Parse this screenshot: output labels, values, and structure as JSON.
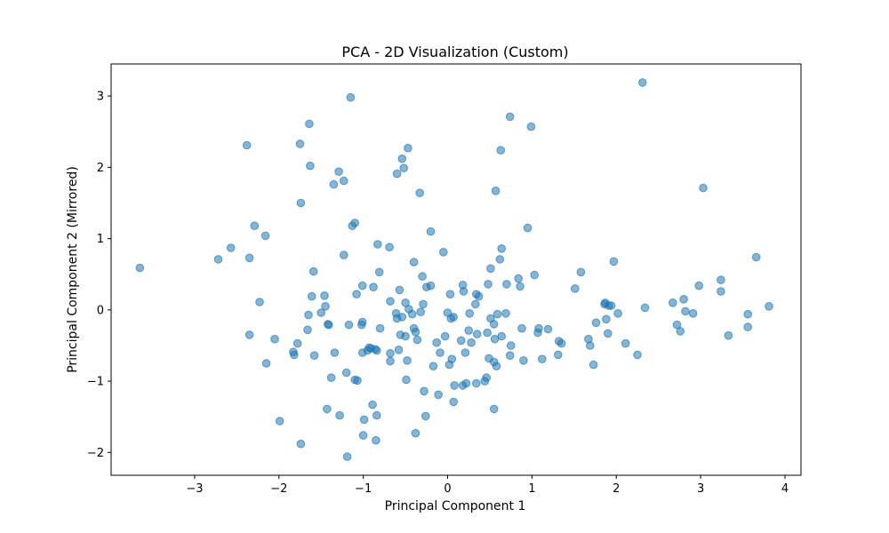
{
  "chart_data": {
    "type": "scatter",
    "title": "PCA - 2D Visualization (Custom)",
    "xlabel": "Principal Component 1",
    "ylabel": "Principal Component 2 (Mirrored)",
    "xlim": [
      -3.99,
      4.19
    ],
    "ylim": [
      -2.32,
      3.45
    ],
    "xticks": [
      -3,
      -2,
      -1,
      0,
      1,
      2,
      3,
      4
    ],
    "xtick_labels": [
      "−3",
      "−2",
      "−1",
      "0",
      "1",
      "2",
      "3",
      "4"
    ],
    "yticks": [
      -2,
      -1,
      0,
      1,
      2,
      3
    ],
    "ytick_labels": [
      "−2",
      "−1",
      "0",
      "1",
      "2",
      "3"
    ],
    "grid": false,
    "marker_color": "#1f77b4",
    "marker_alpha": 0.55,
    "points": [
      [
        -3.65,
        0.59
      ],
      [
        -2.72,
        0.71
      ],
      [
        -2.57,
        0.87
      ],
      [
        -2.38,
        2.31
      ],
      [
        -2.35,
        0.73
      ],
      [
        -2.35,
        -0.35
      ],
      [
        -2.29,
        1.18
      ],
      [
        -2.23,
        0.11
      ],
      [
        -2.16,
        1.04
      ],
      [
        -2.15,
        -0.75
      ],
      [
        -2.05,
        -0.41
      ],
      [
        -1.99,
        -1.56
      ],
      [
        -1.83,
        -0.59
      ],
      [
        -1.82,
        -0.63
      ],
      [
        -1.78,
        -0.47
      ],
      [
        -1.75,
        2.33
      ],
      [
        -1.74,
        1.5
      ],
      [
        -1.74,
        -1.88
      ],
      [
        -1.66,
        -0.28
      ],
      [
        -1.65,
        -0.07
      ],
      [
        -1.64,
        2.61
      ],
      [
        -1.63,
        2.02
      ],
      [
        -1.61,
        0.19
      ],
      [
        -1.59,
        0.54
      ],
      [
        -1.58,
        -0.64
      ],
      [
        -1.5,
        -0.04
      ],
      [
        -1.46,
        0.2
      ],
      [
        -1.45,
        0.05
      ],
      [
        -1.43,
        -1.39
      ],
      [
        -1.42,
        -0.2
      ],
      [
        -1.41,
        -0.21
      ],
      [
        -1.38,
        -0.95
      ],
      [
        -1.35,
        1.76
      ],
      [
        -1.34,
        -0.6
      ],
      [
        -1.29,
        1.94
      ],
      [
        -1.28,
        -1.48
      ],
      [
        -1.23,
        1.81
      ],
      [
        -1.23,
        0.77
      ],
      [
        -1.2,
        -0.88
      ],
      [
        -1.19,
        -2.06
      ],
      [
        -1.17,
        -0.21
      ],
      [
        -1.15,
        2.98
      ],
      [
        -1.13,
        1.18
      ],
      [
        -1.1,
        1.22
      ],
      [
        -1.1,
        -0.98
      ],
      [
        -1.08,
        0.22
      ],
      [
        -1.07,
        -0.99
      ],
      [
        -1.02,
        -0.21
      ],
      [
        -1.01,
        -0.17
      ],
      [
        -1.01,
        0.34
      ],
      [
        -1.01,
        -0.6
      ],
      [
        -1.0,
        -1.76
      ],
      [
        -0.99,
        -1.54
      ],
      [
        -0.95,
        -0.57
      ],
      [
        -0.93,
        -0.53
      ],
      [
        -0.91,
        -0.54
      ],
      [
        -0.89,
        -1.33
      ],
      [
        -0.88,
        0.32
      ],
      [
        -0.86,
        -0.55
      ],
      [
        -0.85,
        -1.83
      ],
      [
        -0.84,
        -1.48
      ],
      [
        -0.84,
        -0.57
      ],
      [
        -0.83,
        0.92
      ],
      [
        -0.81,
        0.53
      ],
      [
        -0.8,
        -0.26
      ],
      [
        -0.69,
        0.88
      ],
      [
        -0.68,
        -0.61
      ],
      [
        -0.68,
        -0.72
      ],
      [
        -0.68,
        0.12
      ],
      [
        -0.61,
        -0.05
      ],
      [
        -0.6,
        -0.12
      ],
      [
        -0.6,
        1.91
      ],
      [
        -0.58,
        -0.56
      ],
      [
        -0.57,
        0.28
      ],
      [
        -0.56,
        -0.35
      ],
      [
        -0.54,
        -0.1
      ],
      [
        -0.54,
        2.12
      ],
      [
        -0.52,
        1.99
      ],
      [
        -0.5,
        -0.37
      ],
      [
        -0.5,
        0.1
      ],
      [
        -0.49,
        -0.98
      ],
      [
        -0.48,
        -0.71
      ],
      [
        -0.47,
        2.27
      ],
      [
        -0.46,
        0.01
      ],
      [
        -0.42,
        -0.06
      ],
      [
        -0.4,
        0.67
      ],
      [
        -0.4,
        -0.26
      ],
      [
        -0.38,
        -0.31
      ],
      [
        -0.38,
        -1.73
      ],
      [
        -0.36,
        -0.42
      ],
      [
        -0.33,
        1.64
      ],
      [
        -0.32,
        -0.03
      ],
      [
        -0.3,
        0.47
      ],
      [
        -0.29,
        0.08
      ],
      [
        -0.28,
        -1.14
      ],
      [
        -0.26,
        -1.49
      ],
      [
        -0.25,
        0.32
      ],
      [
        -0.2,
        1.1
      ],
      [
        -0.2,
        0.34
      ],
      [
        -0.17,
        -0.79
      ],
      [
        -0.13,
        -0.46
      ],
      [
        -0.11,
        -1.19
      ],
      [
        -0.09,
        -0.6
      ],
      [
        -0.05,
        0.81
      ],
      [
        -0.03,
        -0.37
      ],
      [
        0.0,
        -0.04
      ],
      [
        0.02,
        -0.77
      ],
      [
        0.03,
        0.22
      ],
      [
        0.04,
        -0.12
      ],
      [
        0.05,
        -0.69
      ],
      [
        0.07,
        -1.29
      ],
      [
        0.07,
        -0.1
      ],
      [
        0.08,
        -1.06
      ],
      [
        0.16,
        -0.43
      ],
      [
        0.18,
        -1.06
      ],
      [
        0.18,
        0.35
      ],
      [
        0.19,
        0.26
      ],
      [
        0.21,
        -0.6
      ],
      [
        0.22,
        -1.03
      ],
      [
        0.25,
        -0.29
      ],
      [
        0.26,
        -0.05
      ],
      [
        0.28,
        -0.46
      ],
      [
        0.33,
        0.08
      ],
      [
        0.34,
        -1.03
      ],
      [
        0.34,
        0.22
      ],
      [
        0.35,
        -0.34
      ],
      [
        0.37,
        0.19
      ],
      [
        0.44,
        -1.0
      ],
      [
        0.46,
        -0.95
      ],
      [
        0.47,
        -0.32
      ],
      [
        0.48,
        0.36
      ],
      [
        0.49,
        -0.68
      ],
      [
        0.51,
        0.58
      ],
      [
        0.51,
        -0.12
      ],
      [
        0.55,
        -0.2
      ],
      [
        0.55,
        -0.73
      ],
      [
        0.55,
        -1.39
      ],
      [
        0.56,
        -0.41
      ],
      [
        0.57,
        1.67
      ],
      [
        0.58,
        -0.79
      ],
      [
        0.59,
        -0.06
      ],
      [
        0.62,
        0.71
      ],
      [
        0.63,
        2.24
      ],
      [
        0.64,
        -0.37
      ],
      [
        0.64,
        0.86
      ],
      [
        0.69,
        -0.05
      ],
      [
        0.7,
        0.36
      ],
      [
        0.74,
        2.71
      ],
      [
        0.74,
        -0.64
      ],
      [
        0.75,
        -0.5
      ],
      [
        0.84,
        0.44
      ],
      [
        0.86,
        0.33
      ],
      [
        0.88,
        -0.26
      ],
      [
        0.9,
        -0.71
      ],
      [
        0.95,
        1.15
      ],
      [
        0.99,
        2.57
      ],
      [
        1.03,
        0.49
      ],
      [
        1.07,
        -0.32
      ],
      [
        1.08,
        -0.26
      ],
      [
        1.12,
        -0.69
      ],
      [
        1.19,
        -0.27
      ],
      [
        1.31,
        -0.63
      ],
      [
        1.32,
        -0.44
      ],
      [
        1.35,
        -0.47
      ],
      [
        1.51,
        0.3
      ],
      [
        1.58,
        0.53
      ],
      [
        1.67,
        -0.41
      ],
      [
        1.69,
        -0.5
      ],
      [
        1.73,
        -0.77
      ],
      [
        1.76,
        -0.18
      ],
      [
        1.86,
        0.08
      ],
      [
        1.87,
        0.1
      ],
      [
        1.88,
        -0.13
      ],
      [
        1.9,
        -0.33
      ],
      [
        1.91,
        0.06
      ],
      [
        1.94,
        0.06
      ],
      [
        1.97,
        0.68
      ],
      [
        2.02,
        -0.05
      ],
      [
        2.11,
        -0.47
      ],
      [
        2.25,
        -0.63
      ],
      [
        2.31,
        3.19
      ],
      [
        2.34,
        0.03
      ],
      [
        2.67,
        0.1
      ],
      [
        2.72,
        -0.21
      ],
      [
        2.76,
        -0.3
      ],
      [
        2.8,
        0.15
      ],
      [
        2.82,
        -0.02
      ],
      [
        2.91,
        -0.05
      ],
      [
        2.98,
        0.34
      ],
      [
        3.03,
        1.71
      ],
      [
        3.24,
        0.42
      ],
      [
        3.24,
        0.26
      ],
      [
        3.33,
        -0.36
      ],
      [
        3.56,
        -0.06
      ],
      [
        3.56,
        -0.24
      ],
      [
        3.66,
        0.74
      ],
      [
        3.81,
        0.05
      ]
    ]
  }
}
